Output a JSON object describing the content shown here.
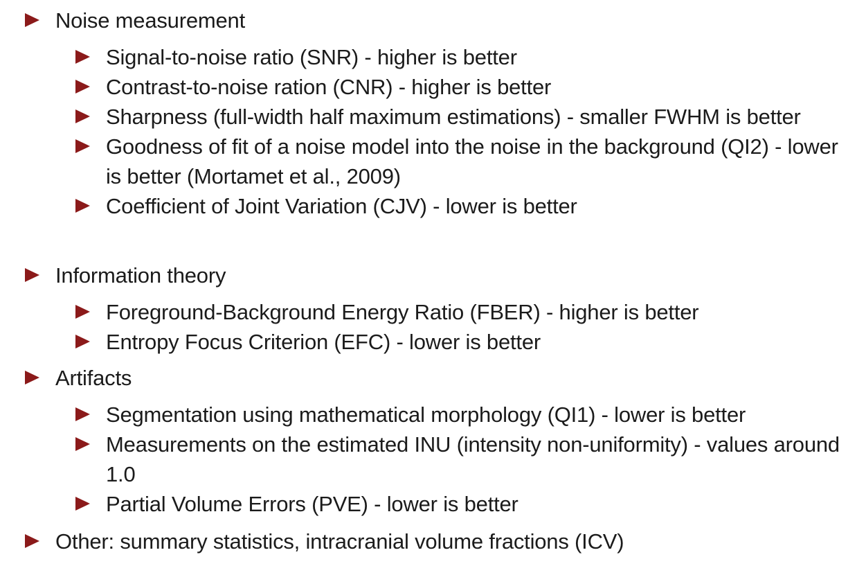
{
  "bullet_color": "#8b1a1a",
  "sections": [
    {
      "heading": "Noise measurement",
      "items": [
        "Signal-to-noise ratio (SNR) - higher is better",
        "Contrast-to-noise ration (CNR) - higher is better",
        "Sharpness (full-width half maximum estimations) - smaller FWHM is better",
        "Goodness of fit of a noise model into the noise in the background (QI2) - lower is better  (Mortamet et al., 2009)",
        "Coefficient of Joint Variation (CJV) - lower is better"
      ]
    },
    {
      "heading": "Information theory",
      "items": [
        "Foreground-Background Energy Ratio (FBER) - higher is better",
        "Entropy Focus Criterion (EFC) - lower is better"
      ]
    },
    {
      "heading": "Artifacts",
      "items": [
        "Segmentation using mathematical morphology (QI1) - lower is better",
        "Measurements on the estimated INU (intensity non-uniformity) - values around 1.0",
        "Partial Volume Errors (PVE) - lower is better"
      ]
    },
    {
      "heading": "Other: summary statistics, intracranial volume fractions (ICV)",
      "items": []
    }
  ]
}
